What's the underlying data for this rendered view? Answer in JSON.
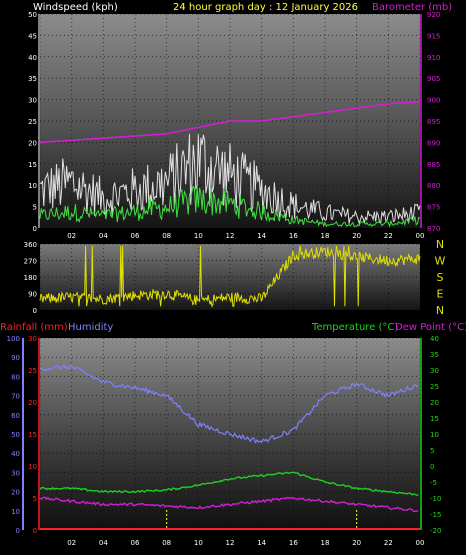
{
  "header": {
    "title": "24 hour graph day : 12 January 2026",
    "left_label": "Windspeed (kph)",
    "right_label": "Barometer (mb)"
  },
  "wind_panel": {
    "y_ticks": [
      0,
      5,
      10,
      15,
      20,
      25,
      30,
      35,
      40,
      45,
      50
    ],
    "baro_ticks": [
      870,
      875,
      880,
      885,
      890,
      895,
      900,
      905,
      910,
      915,
      920
    ],
    "ylim": [
      0,
      50
    ],
    "baro_lim": [
      870,
      920
    ]
  },
  "dir_panel": {
    "y_ticks": [
      0,
      90,
      180,
      270,
      360
    ],
    "compass": [
      "N",
      "W",
      "S",
      "E",
      "N"
    ]
  },
  "bottom_panel": {
    "rain_label": "Rainfall (mm)",
    "humidity_label": "Humidity",
    "temp_label": "Temperature (°C)",
    "dew_label": "Dew Point (°C)",
    "humidity_ticks": [
      0,
      10,
      20,
      30,
      40,
      50,
      60,
      70,
      80,
      90,
      100
    ],
    "rain_ticks": [
      0,
      5,
      10,
      15,
      20,
      25,
      30
    ],
    "temp_ticks": [
      -20,
      -15,
      -10,
      -5,
      0,
      5,
      10,
      15,
      20,
      25,
      30,
      35,
      40
    ]
  },
  "x_ticks": [
    "02",
    "04",
    "06",
    "08",
    "10",
    "12",
    "14",
    "16",
    "18",
    "20",
    "22",
    "00"
  ],
  "colors": {
    "wind_gust": "#e0e0e0",
    "wind_avg": "#40e040",
    "barometer": "#d020d0",
    "direction": "#e0e000",
    "humidity": "#8080ff",
    "temperature": "#20d020",
    "dew_point": "#d020d0",
    "rainfall": "#ff2020",
    "left_axis_wind": "#ffffff",
    "left_axis_humidity": "#8080ff",
    "left_axis_rain": "#ff2020",
    "right_axis_temp": "#20d020",
    "title": "#ffff40"
  },
  "chart_data": [
    {
      "type": "line",
      "xlabel": "",
      "ylabel": "Windspeed (kph)",
      "ylim": [
        0,
        50
      ],
      "x": [
        0,
        2,
        4,
        6,
        8,
        10,
        12,
        14,
        16,
        18,
        20,
        22,
        24
      ],
      "series": [
        {
          "name": "Barometer (mb)",
          "axis": "right",
          "ylim": [
            870,
            920
          ],
          "values": [
            890,
            890.5,
            891,
            891.5,
            892,
            893.5,
            895,
            895,
            896,
            897,
            898,
            899,
            899.5
          ]
        },
        {
          "values": [
            10,
            12,
            8,
            10,
            12,
            18,
            14,
            10,
            6,
            4,
            3,
            3,
            4
          ]
        },
        {
          "values": [
            3,
            4,
            3,
            4,
            5,
            7,
            6,
            4,
            2,
            1,
            1,
            1,
            2
          ]
        }
      ]
    },
    {
      "type": "line",
      "ylabel": "",
      "ylim": [
        0,
        360
      ],
      "x": [
        0,
        2,
        4,
        6,
        8,
        10,
        12,
        14,
        16,
        18,
        20,
        22,
        24
      ],
      "series": [
        {
          "values": [
            60,
            70,
            60,
            80,
            90,
            50,
            70,
            60,
            300,
            320,
            290,
            270,
            280
          ]
        }
      ]
    },
    {
      "type": "line",
      "ylim": [
        0,
        100
      ],
      "x": [
        0,
        2,
        4,
        6,
        8,
        10,
        12,
        14,
        16,
        18,
        20,
        22,
        24
      ],
      "series": [
        {
          "name": "Humidity",
          "axis": "left",
          "ylim": [
            0,
            100
          ],
          "values": [
            84,
            85,
            77,
            74,
            70,
            55,
            50,
            46,
            52,
            70,
            76,
            70,
            76
          ]
        },
        {
          "name": "Temperature (°C)",
          "axis": "right",
          "ylim": [
            -20,
            40
          ],
          "values": [
            -7,
            -7,
            -8,
            -8,
            -7.5,
            -6,
            -4,
            -3,
            -2,
            -5,
            -7,
            -8,
            -9
          ]
        },
        {
          "name": "Dew Point (°C)",
          "axis": "right",
          "ylim": [
            -20,
            40
          ],
          "values": [
            -10,
            -11,
            -12,
            -12,
            -12.5,
            -13,
            -12,
            -11,
            -10,
            -11,
            -12,
            -13,
            -14
          ]
        },
        {
          "name": "Rainfall (mm)",
          "axis": "left2",
          "ylim": [
            0,
            30
          ],
          "values": [
            0,
            0,
            0,
            0,
            0,
            0,
            0,
            0,
            0,
            0,
            0,
            0,
            0
          ]
        }
      ]
    }
  ]
}
